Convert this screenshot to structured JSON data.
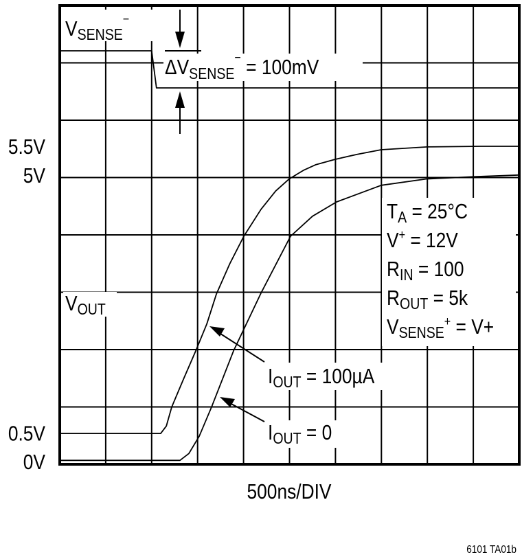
{
  "chart_data": {
    "type": "line",
    "xlabel": "500ns/DIV",
    "x_unit": "ns",
    "xlim": [
      0,
      5000
    ],
    "y_unit": "V",
    "grid": true,
    "divisions": {
      "x": 10,
      "y": 8
    },
    "y_tick_labels": [
      {
        "value": 5.5,
        "label": "5.5V"
      },
      {
        "value": 5,
        "label": "5V"
      },
      {
        "value": 0.5,
        "label": "0.5V"
      },
      {
        "value": 0,
        "label": "0V"
      }
    ],
    "series": [
      {
        "name": "IOUT = 100µA",
        "label": {
          "main": "I",
          "sub": "OUT",
          "rest": " = 100µA"
        },
        "points": [
          [
            0,
            0.49
          ],
          [
            1099,
            0.49
          ],
          [
            1160,
            0.62
          ],
          [
            1218,
            0.95
          ],
          [
            1350,
            1.45
          ],
          [
            1480,
            1.93
          ],
          [
            1600,
            2.4
          ],
          [
            1704,
            2.92
          ],
          [
            1850,
            3.45
          ],
          [
            2003,
            3.93
          ],
          [
            2190,
            4.4
          ],
          [
            2350,
            4.72
          ],
          [
            2496,
            4.93
          ],
          [
            2650,
            5.08
          ],
          [
            2788,
            5.18
          ],
          [
            2990,
            5.27
          ],
          [
            3236,
            5.36
          ],
          [
            3498,
            5.44
          ],
          [
            3999,
            5.49
          ],
          [
            4581,
            5.5
          ],
          [
            5000,
            5.5
          ]
        ]
      },
      {
        "name": "IOUT = 0",
        "label": {
          "main": "I",
          "sub": "OUT",
          "rest": " = 0"
        },
        "points": [
          [
            0,
            0.02
          ],
          [
            1308,
            0.02
          ],
          [
            1405,
            0.14
          ],
          [
            1517,
            0.44
          ],
          [
            1652,
            0.95
          ],
          [
            1891,
            1.93
          ],
          [
            2190,
            2.94
          ],
          [
            2511,
            3.93
          ],
          [
            2750,
            4.28
          ],
          [
            3012,
            4.53
          ],
          [
            3498,
            4.82
          ],
          [
            3984,
            4.93
          ],
          [
            4507,
            4.97
          ],
          [
            5000,
            5.0
          ]
        ]
      }
    ],
    "vsense_trace": {
      "label": {
        "main": "V",
        "sub": "SENSE",
        "sup": "−"
      },
      "step_time_ns": 1000,
      "delta_mV": 100,
      "annotation": {
        "prefix": "ΔV",
        "sub": "SENSE",
        "sup": "−",
        "rest": " = 100mV"
      }
    },
    "vout_label": {
      "main": "V",
      "sub": "OUT"
    },
    "conditions": [
      {
        "main": "T",
        "sub": "A",
        "sup": "",
        "rest": " = 25°C"
      },
      {
        "main": "V",
        "sub": "",
        "sup": "+",
        "rest": " = 12V"
      },
      {
        "main": "R",
        "sub": "IN",
        "sup": "",
        "rest": " = 100"
      },
      {
        "main": "R",
        "sub": "OUT",
        "sup": "",
        "rest": " = 5k"
      },
      {
        "main": "V",
        "sub": "SENSE",
        "sup": "+",
        "rest": " = V+"
      }
    ]
  },
  "figure_id": "6101 TA01b"
}
